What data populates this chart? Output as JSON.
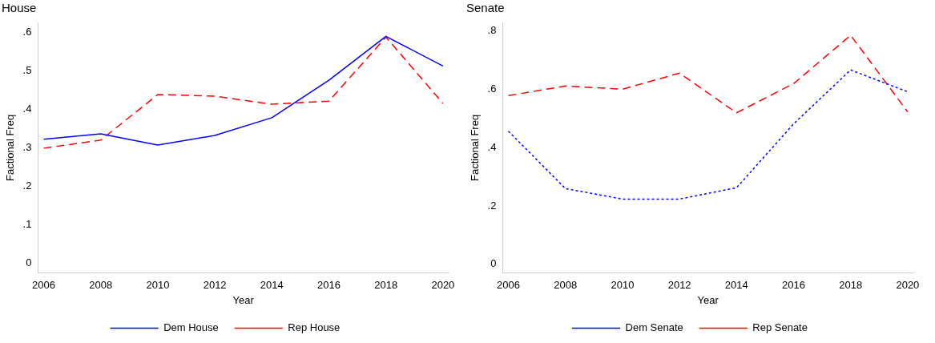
{
  "chart_data": [
    {
      "type": "line",
      "title": "House",
      "xlabel": "Year",
      "ylabel": "Factional Freq",
      "x": [
        2006,
        2008,
        2010,
        2012,
        2014,
        2016,
        2018,
        2020
      ],
      "xlim": [
        2005.8,
        2020.2
      ],
      "xticks": [
        2006,
        2008,
        2010,
        2012,
        2014,
        2016,
        2018,
        2020
      ],
      "ylim": [
        -0.025,
        0.625
      ],
      "yticks": [
        0,
        {
          "value": 0.1,
          "label": ".1"
        },
        {
          "value": 0.2,
          "label": ".2"
        },
        {
          "value": 0.3,
          "label": ".3"
        },
        {
          "value": 0.4,
          "label": ".4"
        },
        {
          "value": 0.5,
          "label": ".5"
        },
        {
          "value": 0.6,
          "label": ".6"
        }
      ],
      "grid": false,
      "legend": "bottom",
      "marker": "none",
      "series": [
        {
          "name": "Dem House",
          "color": "#0000ff",
          "line_style": "solid",
          "values": [
            0.322,
            0.336,
            0.307,
            0.332,
            0.378,
            0.475,
            0.589,
            0.512
          ]
        },
        {
          "name": "Rep House",
          "color": "#ff0000",
          "line_style": "dashed",
          "values": [
            0.299,
            0.32,
            0.438,
            0.434,
            0.413,
            0.421,
            0.587,
            0.415
          ]
        }
      ]
    },
    {
      "type": "line",
      "title": "Senate",
      "xlabel": "Year",
      "ylabel": "Factional Freq",
      "x": [
        2006,
        2008,
        2010,
        2012,
        2014,
        2016,
        2018,
        2020
      ],
      "xlim": [
        2005.8,
        2020.2
      ],
      "xticks": [
        2006,
        2008,
        2010,
        2012,
        2014,
        2016,
        2018,
        2020
      ],
      "ylim": [
        -0.03,
        0.83
      ],
      "yticks": [
        0,
        {
          "value": 0.2,
          "label": ".2"
        },
        {
          "value": 0.4,
          "label": ".4"
        },
        {
          "value": 0.6,
          "label": ".6"
        },
        {
          "value": 0.8,
          "label": ".8"
        }
      ],
      "grid": false,
      "legend": "bottom",
      "marker": "none",
      "series": [
        {
          "name": "Dem Senate",
          "color": "#0000ff",
          "line_style": "dotted",
          "values": [
            0.457,
            0.26,
            0.224,
            0.224,
            0.263,
            0.482,
            0.667,
            0.592
          ]
        },
        {
          "name": "Rep Senate",
          "color": "#ff0000",
          "line_style": "dashed",
          "values": [
            0.579,
            0.612,
            0.601,
            0.656,
            0.52,
            0.62,
            0.786,
            0.523
          ]
        }
      ]
    }
  ]
}
